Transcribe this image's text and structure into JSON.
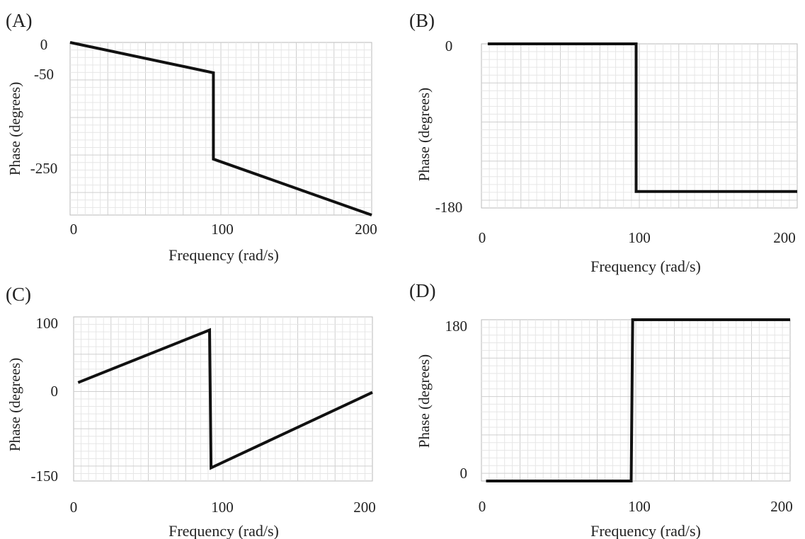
{
  "chart_data": [
    {
      "panel_label": "(A)",
      "type": "line",
      "xlabel": "Frequency (rad/s)",
      "ylabel": "Phase (degrees)",
      "xlim": [
        0,
        200
      ],
      "ylim": [
        -370,
        0
      ],
      "x_ticks": [
        0,
        100,
        200
      ],
      "y_ticks": [
        0,
        -50,
        -250
      ],
      "grid": true,
      "series": [
        {
          "x": [
            0,
            95,
            95,
            200
          ],
          "y": [
            0,
            -65,
            -250,
            -370
          ]
        }
      ]
    },
    {
      "panel_label": "(B)",
      "type": "line",
      "xlabel": "Frequency (rad/s)",
      "ylabel": "Phase (degrees)",
      "xlim": [
        0,
        200
      ],
      "ylim": [
        -200,
        0
      ],
      "x_ticks": [
        0,
        100,
        200
      ],
      "y_ticks": [
        0,
        -180
      ],
      "grid": true,
      "series": [
        {
          "x": [
            4,
            98,
            98,
            200
          ],
          "y": [
            0,
            0,
            -180,
            -180
          ]
        }
      ]
    },
    {
      "panel_label": "(C)",
      "type": "line",
      "xlabel": "Frequency (rad/s)",
      "ylabel": "Phase (degrees)",
      "xlim": [
        0,
        200
      ],
      "ylim": [
        -150,
        100
      ],
      "x_ticks": [
        0,
        100,
        200
      ],
      "y_ticks": [
        100,
        0,
        -150
      ],
      "grid": true,
      "series": [
        {
          "x": [
            3,
            91,
            92,
            200
          ],
          "y": [
            0,
            80,
            -130,
            -15
          ]
        }
      ]
    },
    {
      "panel_label": "(D)",
      "type": "line",
      "xlabel": "Frequency (rad/s)",
      "ylabel": "Phase (degrees)",
      "xlim": [
        0,
        200
      ],
      "ylim": [
        0,
        180
      ],
      "x_ticks": [
        0,
        100,
        200
      ],
      "y_ticks": [
        180,
        0
      ],
      "grid": true,
      "series": [
        {
          "x": [
            3,
            97,
            98,
            200
          ],
          "y": [
            0,
            0,
            180,
            180
          ]
        }
      ]
    }
  ]
}
